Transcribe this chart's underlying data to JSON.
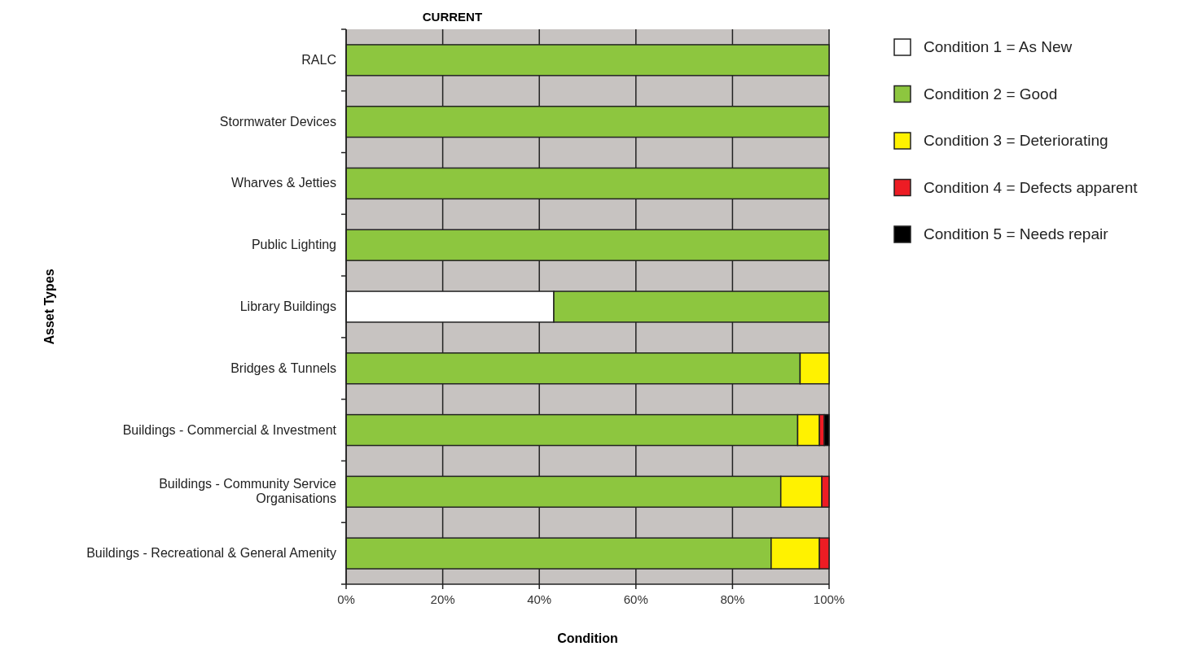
{
  "chart_data": {
    "type": "bar",
    "title": "CURRENT",
    "orientation": "horizontal",
    "stacked": true,
    "xlabel": "Condition",
    "ylabel": "Asset Types",
    "categories": [
      "RALC",
      "Stormwater Devices",
      "Wharves & Jetties",
      "Public Lighting",
      "Library Buildings",
      "Bridges & Tunnels",
      "Buildings - Commercial & Investment",
      "Buildings - Community Service Organisations",
      "Buildings - Recreational & General Amenity"
    ],
    "series": [
      {
        "name": "Condition 1 = As New",
        "color": "#ffffff",
        "values": [
          0,
          0,
          0,
          0,
          43,
          0,
          0,
          0,
          0
        ]
      },
      {
        "name": "Condition 2 = Good",
        "color": "#8dc63f",
        "values": [
          100,
          100,
          100,
          100,
          57,
          94,
          93.5,
          90,
          88
        ]
      },
      {
        "name": "Condition 3 = Deteriorating",
        "color": "#fff200",
        "values": [
          0,
          0,
          0,
          0,
          0,
          6,
          4.5,
          8.5,
          10
        ]
      },
      {
        "name": "Condition 4 = Defects apparent",
        "color": "#ed1c24",
        "values": [
          0,
          0,
          0,
          0,
          0,
          0,
          1,
          1.5,
          2
        ]
      },
      {
        "name": "Condition 5 = Needs repair",
        "color": "#000000",
        "values": [
          0,
          0,
          0,
          0,
          0,
          0,
          1,
          0,
          0
        ]
      }
    ],
    "xlim": [
      0,
      100
    ],
    "xticks": [
      {
        "value": 0,
        "label": "0%"
      },
      {
        "value": 20,
        "label": "20%"
      },
      {
        "value": 40,
        "label": "40%"
      },
      {
        "value": 60,
        "label": "60%"
      },
      {
        "value": 80,
        "label": "80%"
      },
      {
        "value": 100,
        "label": "100%"
      }
    ],
    "grid": "x",
    "legend": "top right"
  }
}
